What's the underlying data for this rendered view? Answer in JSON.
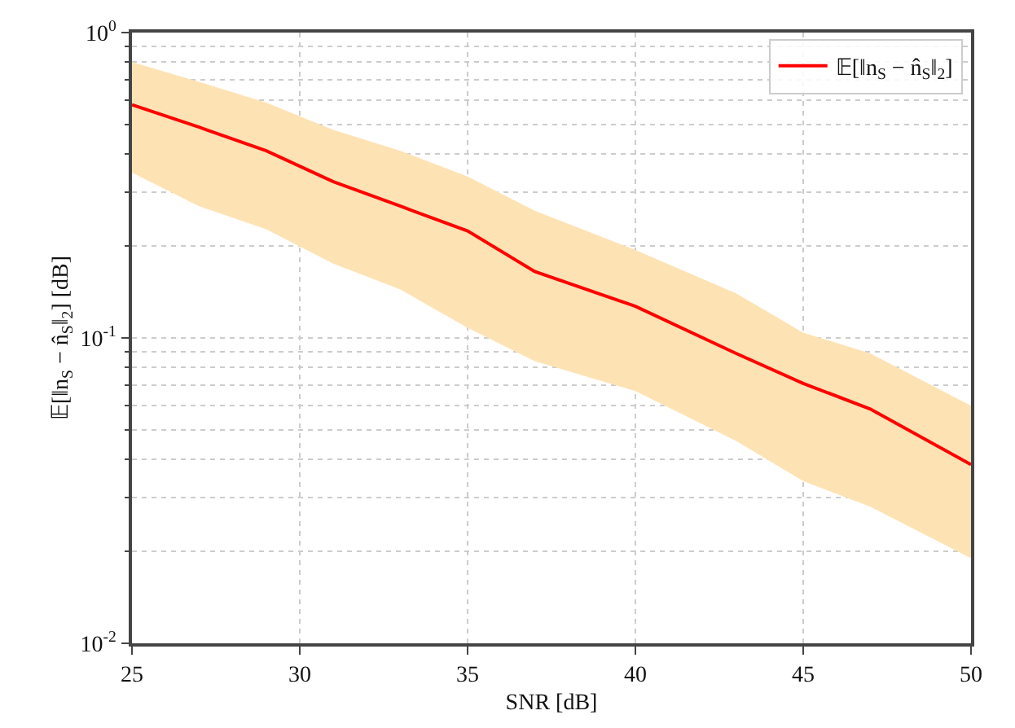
{
  "chart_data": {
    "type": "line",
    "xlabel": "SNR [dB]",
    "ylabel": "𝔼[‖n$_{S}$ − n̂$_{S}$‖$_{2}$] [dB]",
    "x": [
      25,
      27,
      29,
      31,
      33,
      35,
      37,
      40,
      43,
      45,
      47,
      50
    ],
    "series": [
      {
        "name": "𝔼[‖n$_{S}$ − n̂$_{S}$‖$_{2}$]",
        "color": "#ff0000",
        "values": [
          0.58,
          0.49,
          0.41,
          0.325,
          0.27,
          0.224,
          0.165,
          0.127,
          0.089,
          0.071,
          0.0585,
          0.0385
        ],
        "lower": [
          0.348,
          0.27,
          0.227,
          0.175,
          0.144,
          0.108,
          0.084,
          0.067,
          0.046,
          0.034,
          0.028,
          0.019
        ],
        "upper": [
          0.8,
          0.69,
          0.59,
          0.48,
          0.41,
          0.338,
          0.261,
          0.194,
          0.14,
          0.104,
          0.089,
          0.06
        ]
      }
    ],
    "log": "y",
    "xlim": [
      25,
      50
    ],
    "xticks": [
      25,
      30,
      35,
      40,
      45,
      50
    ],
    "ylim": [
      0.01,
      1
    ],
    "yticks": [
      {
        "value": 1,
        "label": "10$^{0}$"
      },
      {
        "value": 0.1,
        "label": "10$^{-1}$"
      },
      {
        "value": 0.01,
        "label": "10$^{-2}$"
      }
    ],
    "grid": true,
    "legend": "top right",
    "marker": "none",
    "line_style": "solid"
  }
}
